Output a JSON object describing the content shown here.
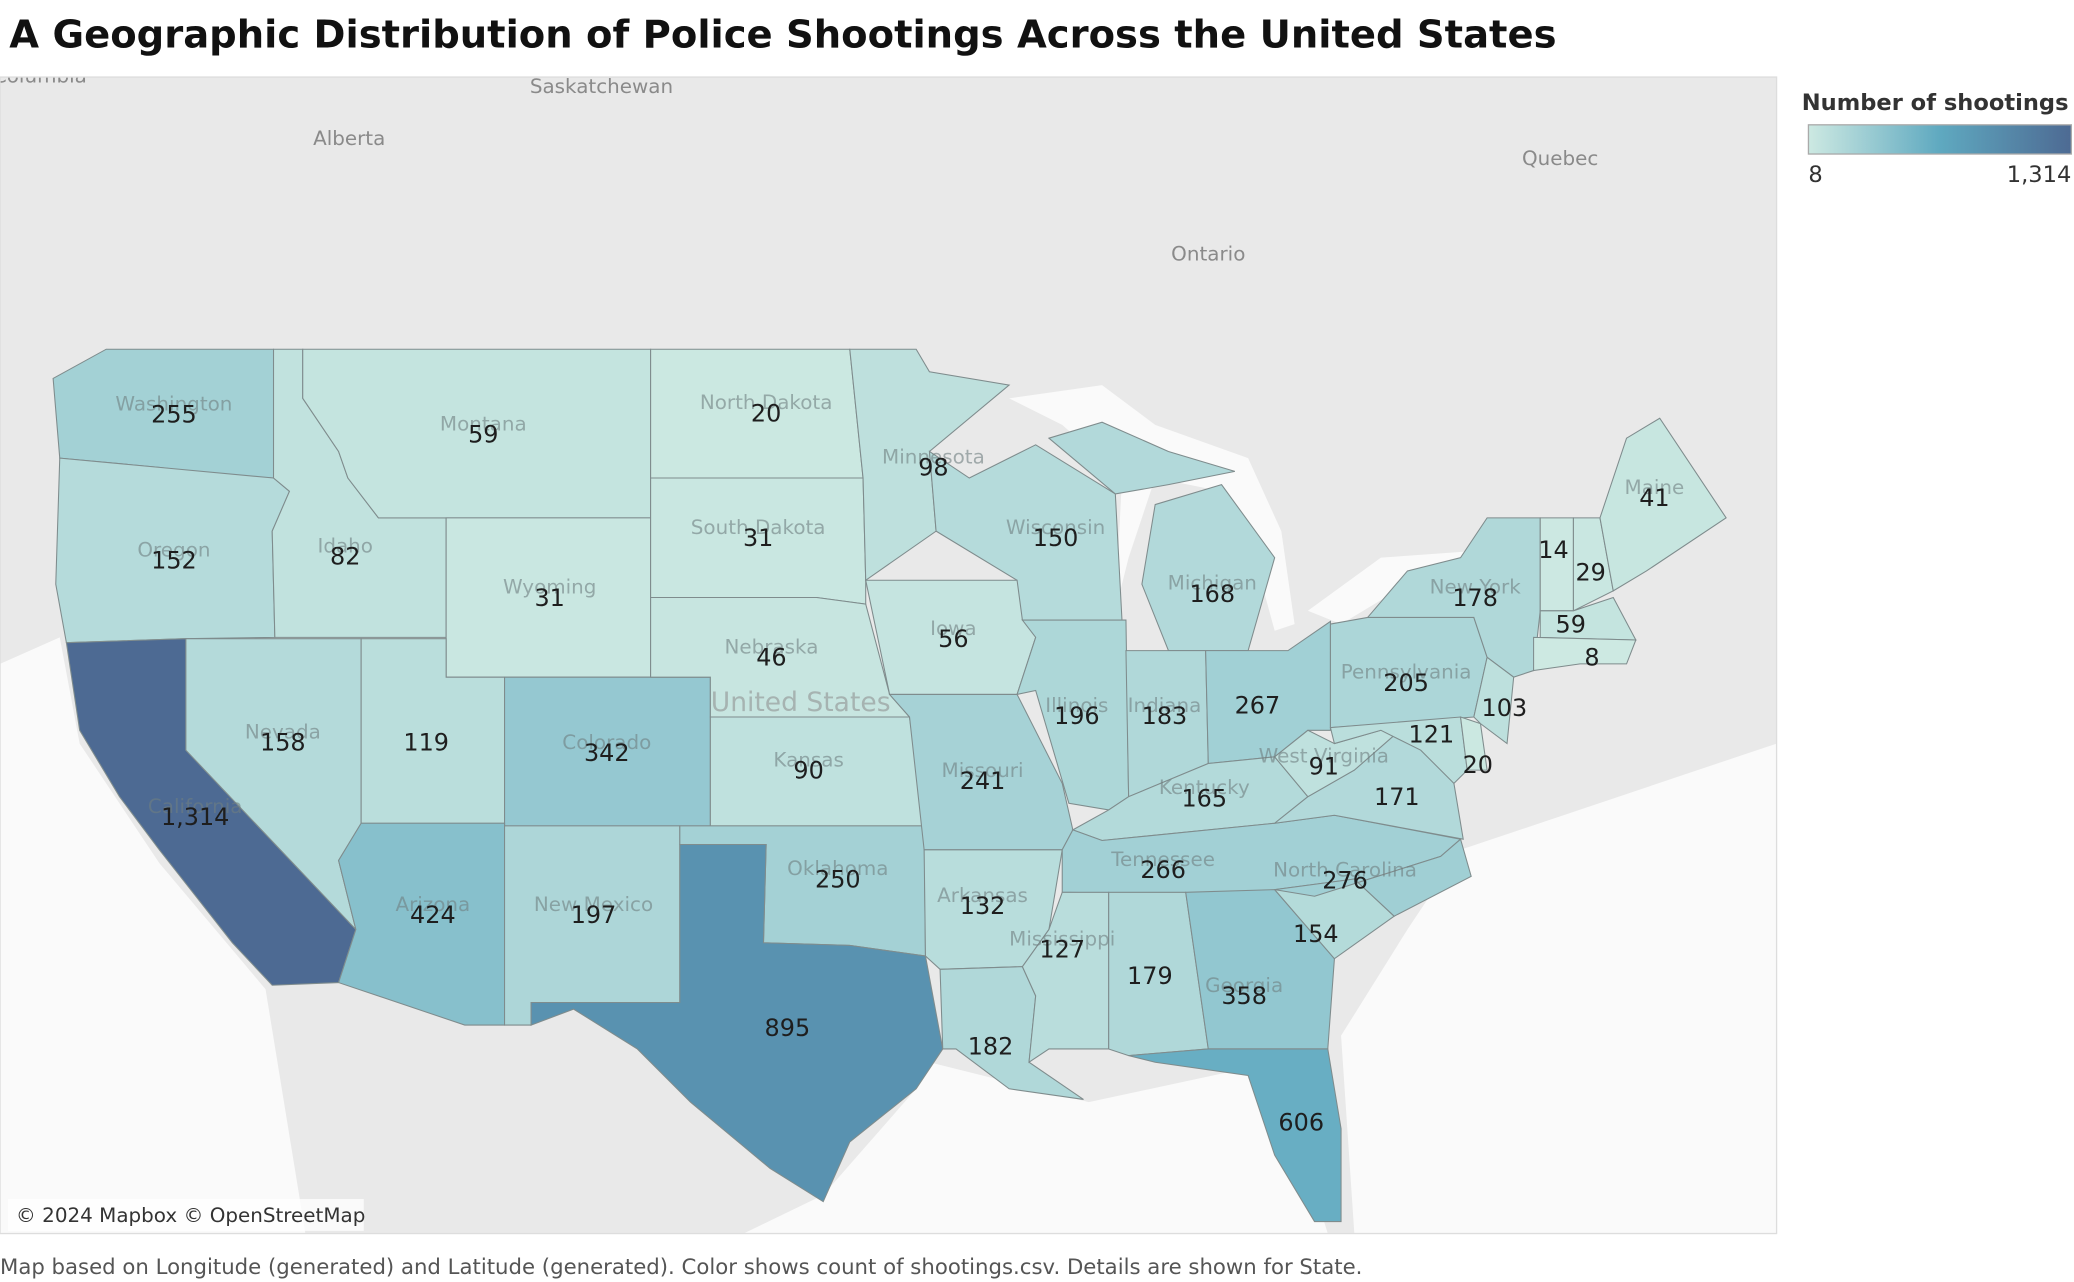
{
  "title": "A Geographic Distribution of Police Shootings Across the United States",
  "map": {
    "labels": [
      "Columbia",
      "Saskatchewan",
      "Alberta",
      "Quebec",
      "Ontario",
      "United States"
    ],
    "attribution": "© 2024 Mapbox © OpenStreetMap"
  },
  "chart_data": {
    "type": "choropleth",
    "legend": {
      "title": "Number of shootings",
      "colors": [
        "#cde9e2",
        "#5fa9c0",
        "#4d6a93"
      ],
      "ticks": [
        8,
        {
          "value": 1314,
          "label": "1,314"
        }
      ]
    },
    "states": [
      {
        "value": 255,
        "name": "Washington"
      },
      {
        "value": 152,
        "name": "Oregon"
      },
      {
        "value": 1314,
        "value_label": "1,314",
        "name": "California"
      },
      {
        "value": 82,
        "name": "Idaho"
      },
      {
        "value": 59,
        "name": "Montana"
      },
      {
        "value": 31,
        "name": "Wyoming"
      },
      {
        "value": 158,
        "name": "Nevada"
      },
      {
        "value": 119
      },
      {
        "value": 342,
        "name": "Colorado"
      },
      {
        "value": 424,
        "name": "Arizona"
      },
      {
        "value": 197,
        "name": "New Mexico"
      },
      {
        "value": 20,
        "name": "North Dakota"
      },
      {
        "value": 31,
        "name": "South Dakota"
      },
      {
        "value": 46,
        "name": "Nebraska"
      },
      {
        "value": 90,
        "name": "Kansas"
      },
      {
        "value": 250,
        "name": "Oklahoma"
      },
      {
        "value": 895
      },
      {
        "value": 98,
        "name": "Minnesota"
      },
      {
        "value": 56,
        "name": "Iowa"
      },
      {
        "value": 241,
        "name": "Missouri"
      },
      {
        "value": 132,
        "name": "Arkansas"
      },
      {
        "value": 182
      },
      {
        "value": 150,
        "name": "Wisconsin"
      },
      {
        "value": 196,
        "name": "Illinois"
      },
      {
        "value": 168,
        "name": "Michigan"
      },
      {
        "value": 183,
        "name": "Indiana"
      },
      {
        "value": 267
      },
      {
        "value": 165,
        "name": "Kentucky"
      },
      {
        "value": 266,
        "name": "Tennessee"
      },
      {
        "value": 127,
        "name": "Mississippi"
      },
      {
        "value": 179
      },
      {
        "value": 358,
        "name": "Georgia"
      },
      {
        "value": 606
      },
      {
        "value": 154
      },
      {
        "value": 276,
        "name": "North Carolina"
      },
      {
        "value": 171
      },
      {
        "value": 91,
        "name": "West Virginia"
      },
      {
        "value": 205,
        "name": "Pennsylvania"
      },
      {
        "value": 178,
        "name": "New York"
      },
      {
        "value": 121
      },
      {
        "value": 20
      },
      {
        "value": 103
      },
      {
        "value": 14
      },
      {
        "value": 29
      },
      {
        "value": 41,
        "name": "Maine"
      },
      {
        "value": 59
      },
      {
        "value": 8
      }
    ]
  },
  "caption": "Map based on Longitude (generated) and Latitude (generated).  Color shows count of shootings.csv.  Details are shown for State."
}
